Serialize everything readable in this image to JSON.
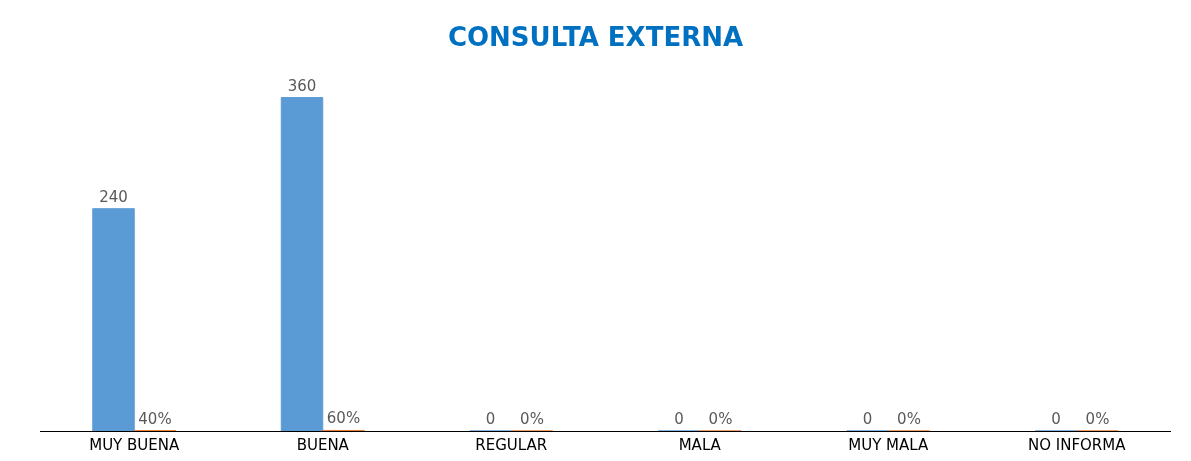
{
  "chart_data": {
    "type": "bar",
    "title": "CONSULTA EXTERNA",
    "categories": [
      "MUY BUENA",
      "BUENA",
      "REGULAR",
      "MALA",
      "MUY MALA",
      "NO INFORMA"
    ],
    "series": [
      {
        "color": "#5b9bd5",
        "values": [
          240,
          360,
          0,
          0,
          0,
          0
        ],
        "value_labels": [
          "240",
          "360",
          "0",
          "0",
          "0",
          "0"
        ]
      },
      {
        "color": "#ed7d31",
        "values": [
          0.4,
          0.6,
          0,
          0,
          0,
          0
        ],
        "value_labels": [
          "40%",
          "60%",
          "0%",
          "0%",
          "0%",
          "0%"
        ]
      }
    ],
    "legend": false
  }
}
